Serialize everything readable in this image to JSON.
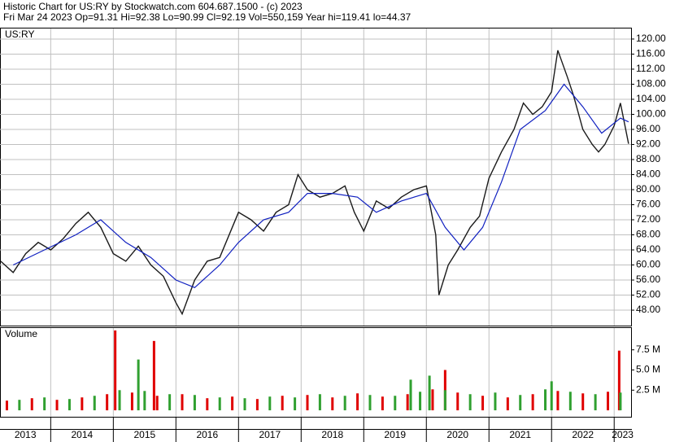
{
  "header": {
    "line1": "Historic Chart for US:RY by Stockwatch.com 604.687.1500 - (c) 2023",
    "line2": "Fri Mar 24 2023   Op=91.31   Hi=92.38   Lo=90.99   Cl=92.19   Vol=550,159   Year hi=119.41   lo=44.37"
  },
  "chart_data": [
    {
      "type": "line",
      "title": "US:RY",
      "grid": true,
      "xlim": [
        2013.19,
        2023.27
      ],
      "ylim": [
        43.9,
        122.8
      ],
      "xticks": [
        {
          "value": 2013,
          "label": "2013"
        },
        {
          "value": 2014,
          "label": "2014"
        },
        {
          "value": 2015,
          "label": "2015"
        },
        {
          "value": 2016,
          "label": "2016"
        },
        {
          "value": 2017,
          "label": "2017"
        },
        {
          "value": 2018,
          "label": "2018"
        },
        {
          "value": 2019,
          "label": "2019"
        },
        {
          "value": 2020,
          "label": "2020"
        },
        {
          "value": 2021,
          "label": "2021"
        },
        {
          "value": 2022,
          "label": "2022"
        },
        {
          "value": 2023,
          "label": "2023"
        }
      ],
      "yticks": [
        {
          "value": 48,
          "label": "48.00"
        },
        {
          "value": 52,
          "label": "52.00"
        },
        {
          "value": 56,
          "label": "56.00"
        },
        {
          "value": 60,
          "label": "60.00"
        },
        {
          "value": 64,
          "label": "64.00"
        },
        {
          "value": 68,
          "label": "68.00"
        },
        {
          "value": 72,
          "label": "72.00"
        },
        {
          "value": 76,
          "label": "76.00"
        },
        {
          "value": 80,
          "label": "80.00"
        },
        {
          "value": 84,
          "label": "84.00"
        },
        {
          "value": 88,
          "label": "88.00"
        },
        {
          "value": 92,
          "label": "92.00"
        },
        {
          "value": 96,
          "label": "96.00"
        },
        {
          "value": 100,
          "label": "100.00"
        },
        {
          "value": 104,
          "label": "104.00"
        },
        {
          "value": 108,
          "label": "108.00"
        },
        {
          "value": 112,
          "label": "112.00"
        },
        {
          "value": 116,
          "label": "116.00"
        },
        {
          "value": 120,
          "label": "120.00"
        }
      ],
      "series": [
        {
          "color": "#1a1a1a",
          "x": [
            2013.2,
            2013.4,
            2013.6,
            2013.8,
            2014.0,
            2014.2,
            2014.4,
            2014.6,
            2014.8,
            2015.0,
            2015.2,
            2015.4,
            2015.6,
            2015.8,
            2016.0,
            2016.1,
            2016.3,
            2016.5,
            2016.7,
            2016.9,
            2017.0,
            2017.2,
            2017.4,
            2017.6,
            2017.8,
            2017.95,
            2018.1,
            2018.3,
            2018.5,
            2018.7,
            2018.85,
            2019.0,
            2019.2,
            2019.4,
            2019.6,
            2019.8,
            2020.0,
            2020.15,
            2020.2,
            2020.35,
            2020.5,
            2020.7,
            2020.85,
            2021.0,
            2021.2,
            2021.4,
            2021.55,
            2021.7,
            2021.85,
            2022.0,
            2022.1,
            2022.25,
            2022.35,
            2022.5,
            2022.65,
            2022.75,
            2022.85,
            2023.0,
            2023.1,
            2023.23
          ],
          "values": [
            61,
            58,
            63,
            66,
            64,
            67,
            71,
            74,
            70,
            63,
            61,
            65,
            60,
            57,
            50,
            47,
            56,
            61,
            62,
            70,
            74,
            72,
            69,
            74,
            76,
            84,
            80,
            78,
            79,
            81,
            74,
            69,
            77,
            75,
            78,
            80,
            81,
            68,
            52,
            60,
            64,
            70,
            73,
            83,
            90,
            96,
            103,
            100,
            102,
            106,
            117,
            110,
            105,
            96,
            92,
            90,
            92,
            97,
            103,
            92.19
          ]
        },
        {
          "color": "#1020c0",
          "x": [
            2013.4,
            2013.9,
            2014.4,
            2014.8,
            2015.2,
            2015.6,
            2016.0,
            2016.3,
            2016.7,
            2017.0,
            2017.4,
            2017.8,
            2018.1,
            2018.5,
            2018.9,
            2019.2,
            2019.6,
            2020.0,
            2020.3,
            2020.6,
            2020.9,
            2021.2,
            2021.5,
            2021.9,
            2022.2,
            2022.5,
            2022.8,
            2023.1,
            2023.23
          ],
          "values": [
            60,
            64,
            68,
            72,
            66,
            62,
            56,
            54,
            60,
            66,
            72,
            74,
            79,
            79,
            78,
            74,
            77,
            79,
            70,
            64,
            70,
            82,
            96,
            101,
            108,
            102,
            95,
            99,
            98
          ]
        }
      ]
    },
    {
      "type": "bar",
      "title": "Volume",
      "xlim": [
        2013.19,
        2023.27
      ],
      "ylim": [
        -0.8,
        10.2
      ],
      "yticks": [
        {
          "value": 2.5,
          "label": "2.5 M"
        },
        {
          "value": 5.0,
          "label": "5.0 M"
        },
        {
          "value": 7.5,
          "label": "7.5 M"
        }
      ],
      "series": [
        {
          "color": "#e00000",
          "x": [
            2013.3,
            2013.7,
            2014.1,
            2014.5,
            2014.9,
            2015.3,
            2015.7,
            2016.1,
            2016.5,
            2016.9,
            2017.3,
            2017.7,
            2018.1,
            2018.5,
            2018.9,
            2019.3,
            2019.7,
            2020.1,
            2020.5,
            2020.9,
            2021.3,
            2021.7,
            2022.1,
            2022.5,
            2022.9,
            2015.03,
            2015.65,
            2020.3,
            2023.08
          ],
          "values": [
            1.2,
            1.5,
            1.3,
            1.6,
            2.0,
            2.2,
            1.8,
            2.0,
            1.5,
            1.7,
            1.4,
            1.8,
            1.9,
            1.6,
            2.1,
            1.7,
            2.0,
            2.6,
            2.2,
            1.8,
            1.6,
            2.0,
            2.4,
            2.1,
            2.3,
            9.9,
            8.6,
            5.0,
            7.4
          ]
        },
        {
          "color": "#30a030",
          "x": [
            2013.5,
            2013.9,
            2014.3,
            2014.7,
            2015.1,
            2015.5,
            2015.9,
            2016.3,
            2016.7,
            2017.1,
            2017.5,
            2017.9,
            2018.3,
            2018.7,
            2019.1,
            2019.5,
            2019.9,
            2020.3,
            2020.7,
            2021.1,
            2021.5,
            2021.9,
            2022.3,
            2022.7,
            2023.1,
            2015.4,
            2019.75,
            2020.05,
            2022.0
          ],
          "values": [
            1.3,
            1.6,
            1.4,
            1.8,
            2.5,
            2.4,
            2.0,
            1.9,
            1.6,
            1.5,
            1.7,
            1.6,
            2.0,
            1.8,
            1.9,
            1.8,
            2.3,
            2.5,
            2.0,
            2.2,
            1.9,
            2.6,
            2.3,
            2.0,
            2.2,
            6.3,
            3.8,
            4.3,
            3.6
          ]
        }
      ]
    }
  ]
}
